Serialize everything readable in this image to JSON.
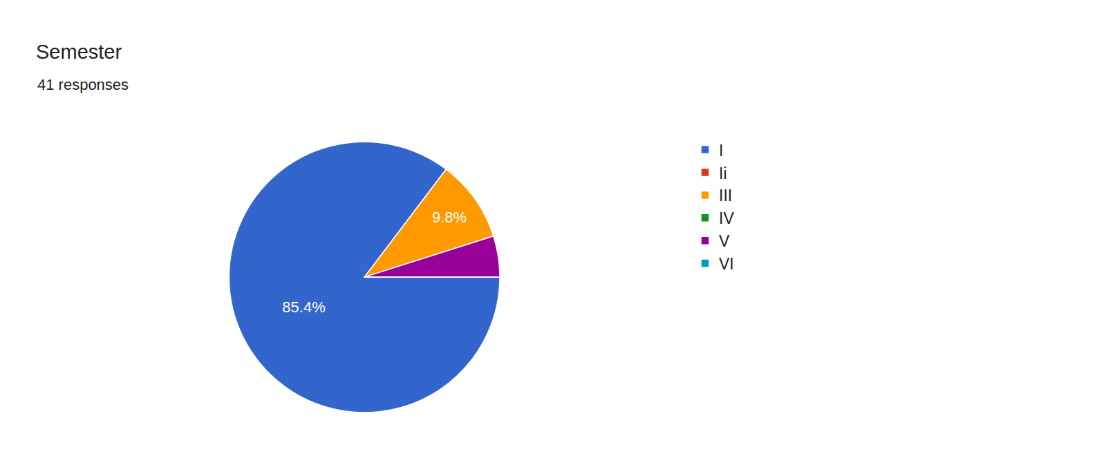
{
  "chart_data": {
    "type": "pie",
    "title": "Semester",
    "subtitle": "41 responses",
    "categories": [
      "I",
      "Ii",
      "III",
      "IV",
      "V",
      "VI"
    ],
    "values": [
      85.4,
      0,
      9.8,
      0,
      4.9,
      0
    ],
    "value_labels": [
      "85.4%",
      null,
      "9.8%",
      null,
      null,
      null
    ],
    "colors": [
      "#3366cc",
      "#dc3912",
      "#ff9900",
      "#109618",
      "#990099",
      "#0099c6"
    ],
    "data_labels": true,
    "legend": "right"
  }
}
